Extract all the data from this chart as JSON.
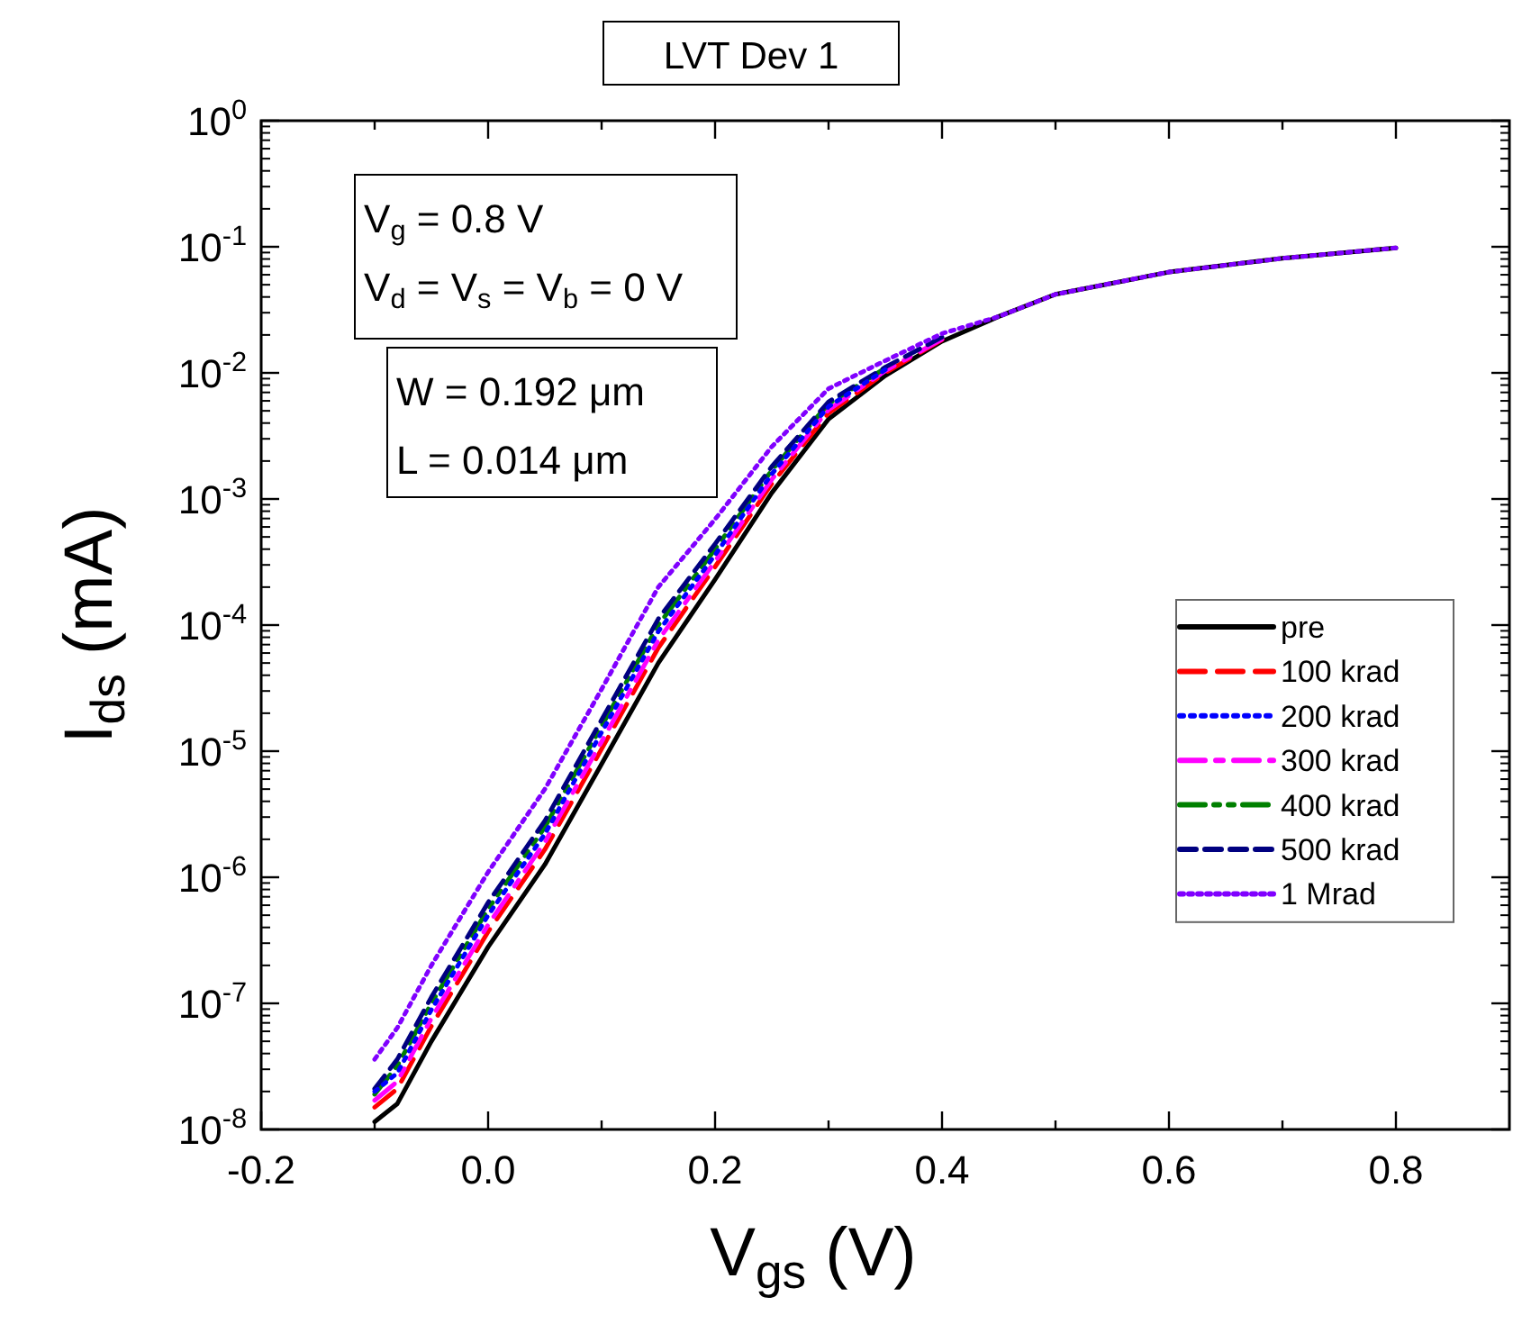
{
  "chart_data": {
    "type": "line",
    "title": "LVT Dev 1",
    "xlabel": "V$_{gs}$ (V)",
    "ylabel": "I$_{ds}$ (mA)",
    "annotations": [
      "V$_{g}$ = 0.8 V\nV$_{d}$ = V$_{s}$ = V$_{b}$ = 0 V",
      "W = 0.192 μm\nL  = 0.014 μm"
    ],
    "x": [
      -0.1,
      -0.08,
      -0.05,
      0,
      0.05,
      0.1,
      0.15,
      0.2,
      0.25,
      0.3,
      0.35,
      0.4,
      0.45,
      0.5,
      0.6,
      0.7,
      0.8
    ],
    "series": [
      {
        "name": "pre",
        "color": "#000000",
        "line_style": "solid",
        "values": [
          1.15e-08,
          1.6e-08,
          5e-08,
          2.8e-07,
          1.26e-06,
          7.9e-06,
          5e-05,
          0.00023,
          0.00112,
          0.0043,
          0.0095,
          0.0178,
          0.028,
          0.042,
          0.063,
          0.081,
          0.098
        ]
      },
      {
        "name": "100 krad",
        "color": "#ff0000",
        "line_style": "dashed",
        "values": [
          1.5e-08,
          2.1e-08,
          6.6e-08,
          3.7e-07,
          1.66e-06,
          1.04e-05,
          6.6e-05,
          0.00029,
          0.00132,
          0.0048,
          0.01,
          0.0183,
          null,
          null,
          null,
          null,
          null
        ]
      },
      {
        "name": "200 krad",
        "color": "#0000ff",
        "line_style": "dotted",
        "values": [
          2e-08,
          2.8e-08,
          8.9e-08,
          5e-07,
          2.2e-06,
          1.41e-05,
          8.9e-05,
          0.00036,
          0.00158,
          0.0054,
          0.0106,
          null,
          null,
          null,
          null,
          null,
          null
        ]
      },
      {
        "name": "300 krad",
        "color": "#ff00ff",
        "line_style": "dashed",
        "values": [
          1.7e-08,
          2.4e-08,
          7.6e-08,
          4.2e-07,
          1.9e-06,
          1.19e-05,
          7.6e-05,
          0.00032,
          0.00143,
          0.0051,
          0.0104,
          0.0185,
          null,
          null,
          null,
          null,
          null
        ]
      },
      {
        "name": "400 krad",
        "color": "#008000",
        "line_style": "dashed",
        "values": [
          1.9e-08,
          3.2e-08,
          1e-07,
          5.6e-07,
          2.5e-06,
          1.58e-05,
          0.0001,
          0.0004,
          0.00169,
          0.0057,
          0.0109,
          null,
          null,
          null,
          null,
          null,
          null
        ]
      },
      {
        "name": "500 krad",
        "color": "#000080",
        "line_style": "dashed",
        "values": [
          2.1e-08,
          3.6e-08,
          1.12e-07,
          6.3e-07,
          2.8e-06,
          1.77e-05,
          0.000112,
          0.00044,
          0.00181,
          0.0059,
          0.0111,
          0.0192,
          null,
          null,
          null,
          null,
          null
        ]
      },
      {
        "name": "1 Mrad",
        "color": "#8000ff",
        "line_style": "dotted",
        "values": [
          3.6e-08,
          6.4e-08,
          2e-07,
          1.1e-06,
          5e-06,
          3.1e-05,
          0.0002,
          0.00069,
          0.0026,
          0.0075,
          0.0125,
          0.0205,
          0.028,
          0.042,
          0.063,
          0.081,
          0.098
        ]
      }
    ],
    "log": "y",
    "xlim": [
      -0.2,
      0.9
    ],
    "ylim": [
      1e-08,
      1
    ],
    "xticks": [
      -0.2,
      {
        "value": -0.1,
        "label": null
      },
      "0.0",
      {
        "value": 0.1,
        "label": null
      },
      0.2,
      {
        "value": 0.3,
        "label": null
      },
      0.4,
      {
        "value": 0.5,
        "label": null
      },
      0.6,
      {
        "value": 0.7,
        "label": null
      },
      0.8
    ],
    "yticks": [
      {
        "value": 1e-08,
        "label": "10$^{-8}$"
      },
      {
        "value": 1e-07,
        "label": "10$^{-7}$"
      },
      {
        "value": 1e-06,
        "label": "10$^{-6}$"
      },
      {
        "value": 1e-05,
        "label": "10$^{-5}$"
      },
      {
        "value": 0.0001,
        "label": "10$^{-4}$"
      },
      {
        "value": 0.001,
        "label": "10$^{-3}$"
      },
      {
        "value": 0.01,
        "label": "10$^{-2}$"
      },
      {
        "value": 0.1,
        "label": "10$^{-1}$"
      },
      {
        "value": 1,
        "label": "10$^{0}$"
      }
    ],
    "grid": false,
    "legend": "right",
    "marker": "none"
  }
}
